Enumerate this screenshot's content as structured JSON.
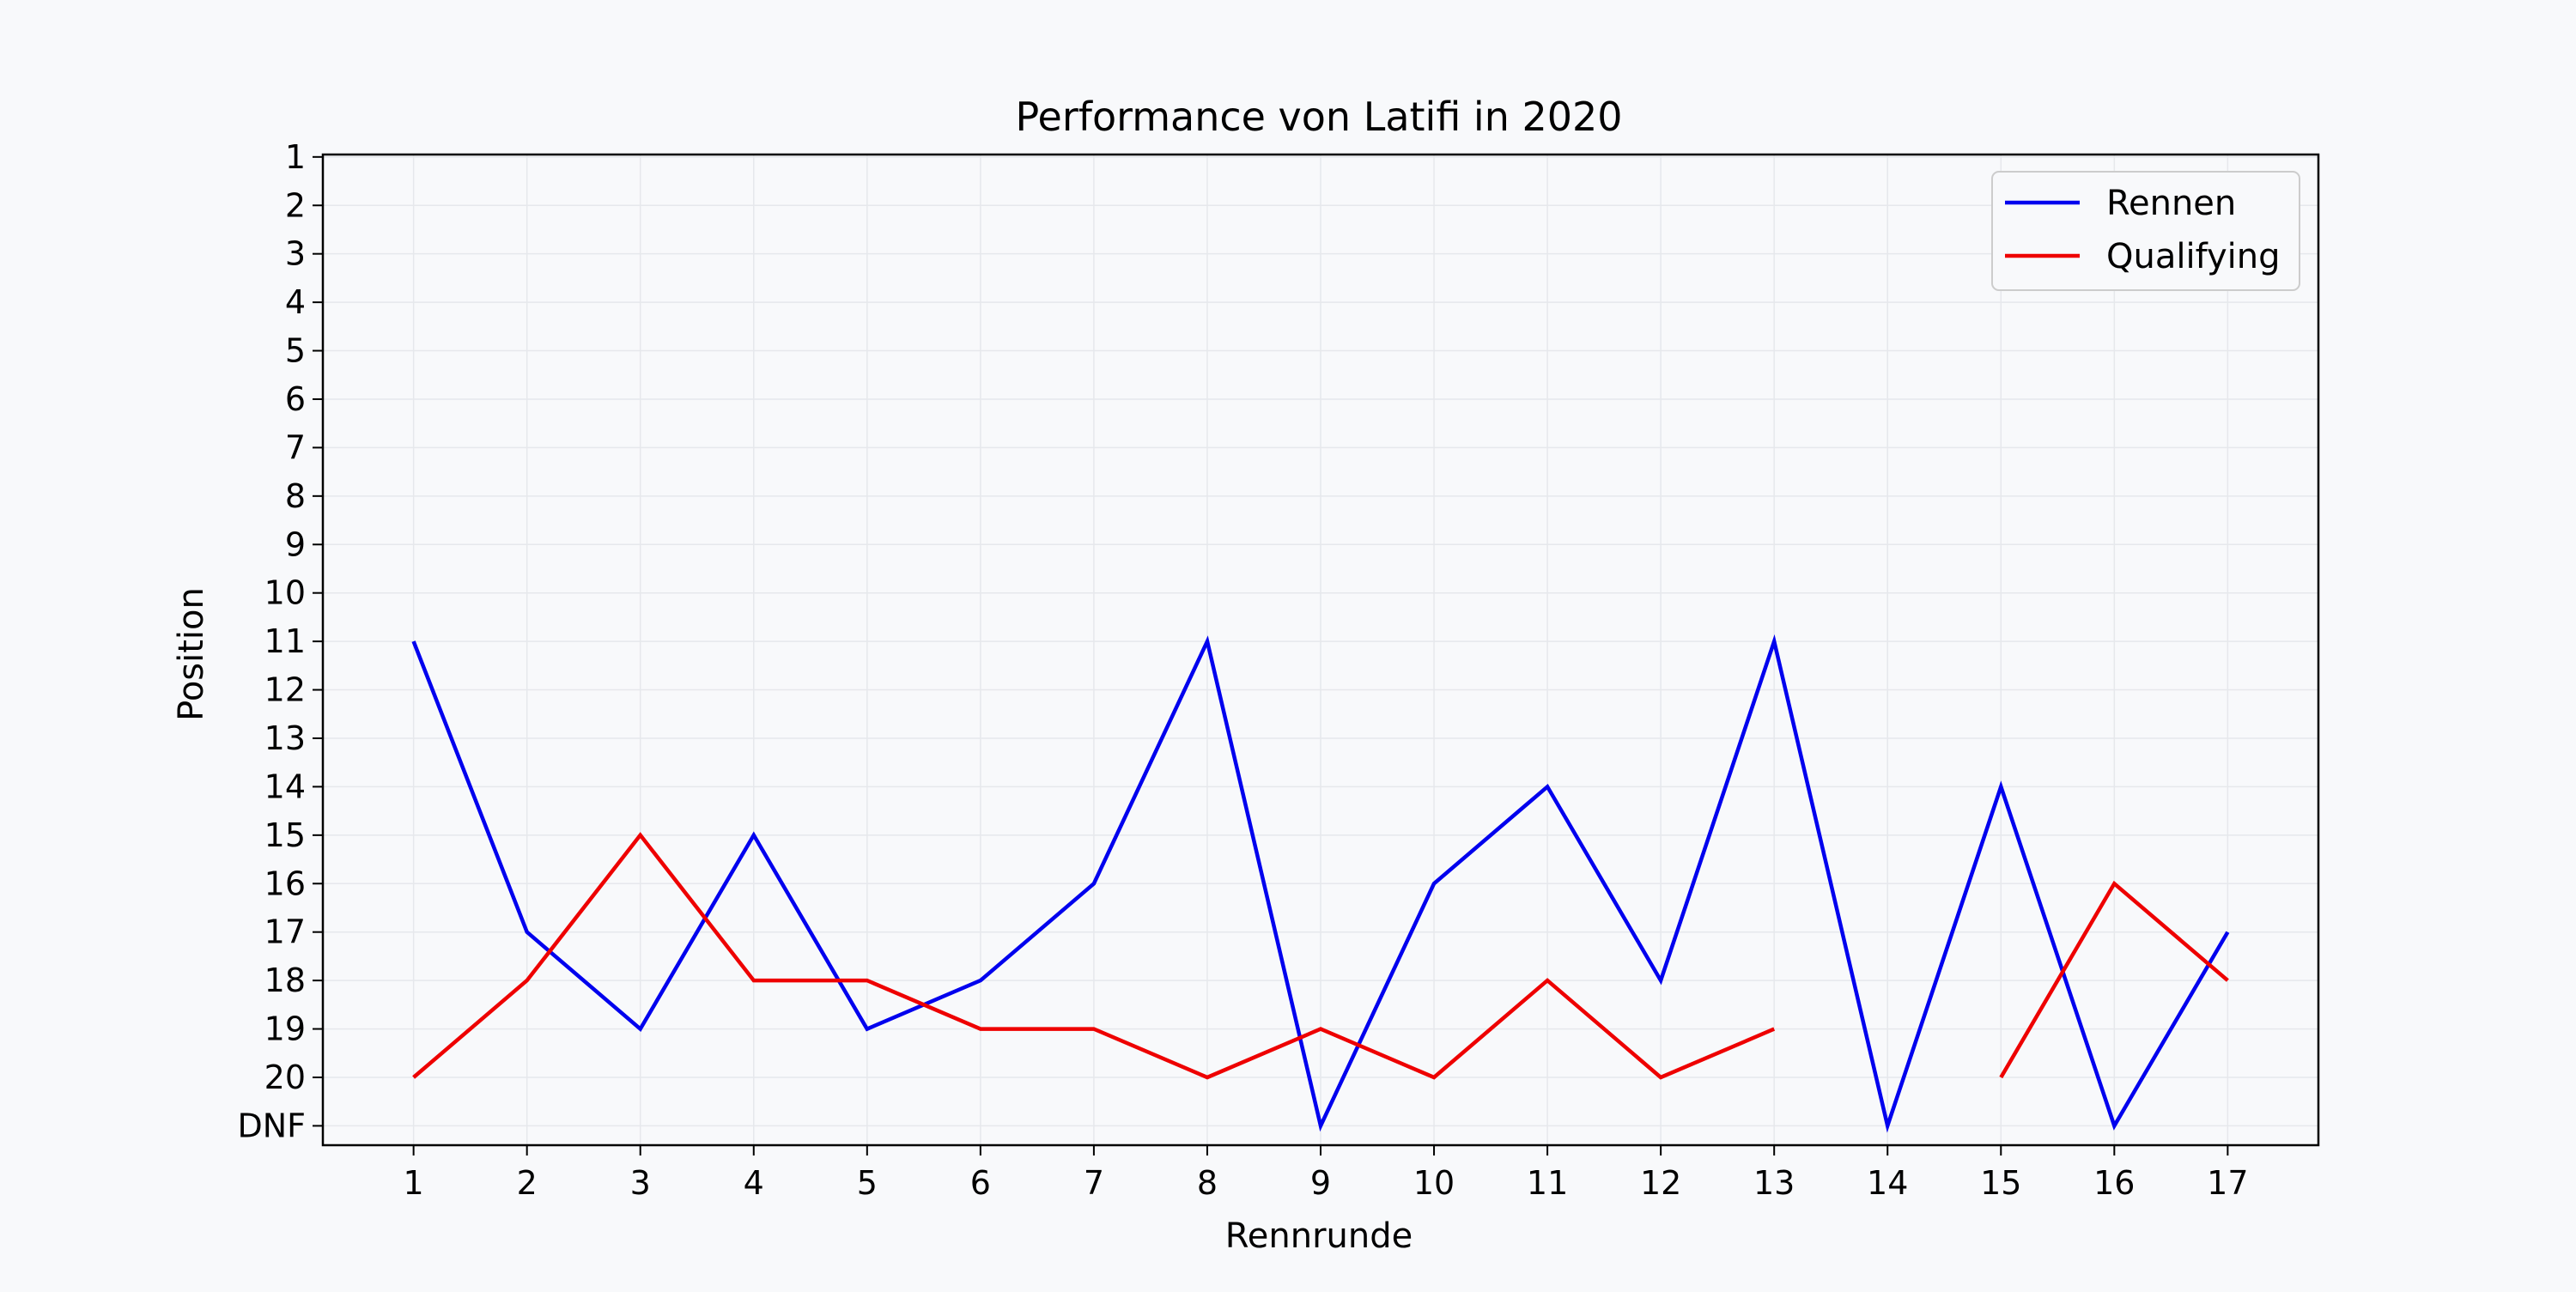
{
  "chart_data": {
    "type": "line",
    "title": "Performance von Latifi in 2020",
    "xlabel": "Rennrunde",
    "ylabel": "Position",
    "x": [
      1,
      2,
      3,
      4,
      5,
      6,
      7,
      8,
      9,
      10,
      11,
      12,
      13,
      14,
      15,
      16,
      17
    ],
    "x_tick_labels": [
      "1",
      "2",
      "3",
      "4",
      "5",
      "6",
      "7",
      "8",
      "9",
      "10",
      "11",
      "12",
      "13",
      "14",
      "15",
      "16",
      "17"
    ],
    "y_tick_labels": [
      "1",
      "2",
      "3",
      "4",
      "5",
      "6",
      "7",
      "8",
      "9",
      "10",
      "11",
      "12",
      "13",
      "14",
      "15",
      "16",
      "17",
      "18",
      "19",
      "20",
      "DNF"
    ],
    "y_scale_note": "DNF plotted at position 21",
    "ylim": [
      21.4,
      0.95
    ],
    "xlim": [
      0.2,
      17.8
    ],
    "y_inverted": true,
    "grid": true,
    "legend_position": "top-right",
    "series": [
      {
        "name": "Rennen",
        "color": "#0000ee",
        "values": [
          11,
          17,
          19,
          15,
          19,
          18,
          16,
          11,
          21,
          16,
          14,
          18,
          11,
          21,
          14,
          21,
          17
        ]
      },
      {
        "name": "Qualifying",
        "color": "#ee0000",
        "values": [
          20,
          18,
          15,
          18,
          18,
          19,
          19,
          20,
          19,
          20,
          18,
          20,
          19,
          null,
          20,
          16,
          18
        ]
      }
    ]
  }
}
